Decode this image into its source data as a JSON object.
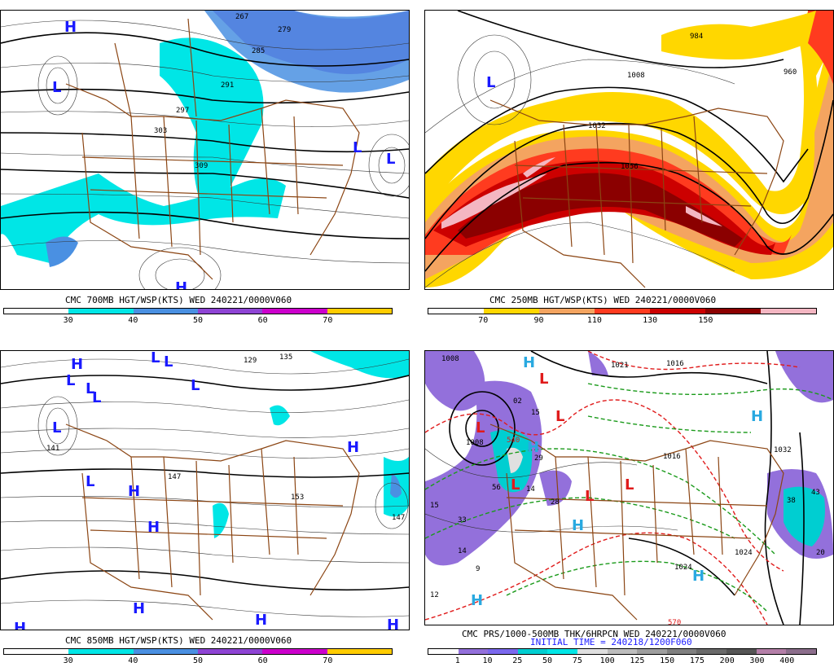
{
  "panels": [
    {
      "id": "p700",
      "title": "CMC 700MB HGT/WSP(KTS) WED 240221/0000V060",
      "colorbar": {
        "ticks": [
          "30",
          "40",
          "50",
          "60",
          "70"
        ],
        "colors": [
          "#ffffff",
          "#00e6e6",
          "#4a90e2",
          "#8e44d4",
          "#cc00cc",
          "#ffcc00"
        ]
      },
      "contour_labels": [
        "297",
        "303",
        "309",
        "279",
        "285",
        "291",
        "267"
      ],
      "pressure_centers": [
        {
          "type": "H"
        },
        {
          "type": "L"
        },
        {
          "type": "L"
        },
        {
          "type": "L"
        },
        {
          "type": "H"
        }
      ]
    },
    {
      "id": "p250",
      "title": "CMC 250MB HGT/WSP(KTS) WED 240221/0000V060",
      "colorbar": {
        "ticks": [
          "70",
          "90",
          "110",
          "130",
          "150"
        ],
        "colors": [
          "#ffffff",
          "#ffd700",
          "#f4a460",
          "#ff3b1f",
          "#cc0000",
          "#8b0000",
          "#f4b6c2"
        ]
      },
      "contour_labels": [
        "1032",
        "1008",
        "984",
        "1056",
        "960"
      ],
      "pressure_centers": [
        {
          "type": "L"
        }
      ]
    },
    {
      "id": "p850",
      "title": "CMC 850MB HGT/WSP(KTS) WED 240221/0000V060",
      "colorbar": {
        "ticks": [
          "30",
          "40",
          "50",
          "60",
          "70"
        ],
        "colors": [
          "#ffffff",
          "#00e6e6",
          "#4a90e2",
          "#8e44d4",
          "#cc00cc",
          "#ffcc00"
        ]
      },
      "contour_labels": [
        "147",
        "141",
        "129",
        "135",
        "153",
        "147"
      ],
      "pressure_centers": [
        {
          "type": "H"
        },
        {
          "type": "L"
        },
        {
          "type": "L"
        },
        {
          "type": "L"
        },
        {
          "type": "L"
        },
        {
          "type": "L"
        },
        {
          "type": "L"
        },
        {
          "type": "L"
        },
        {
          "type": "L"
        },
        {
          "type": "H"
        },
        {
          "type": "H"
        },
        {
          "type": "H"
        },
        {
          "type": "H"
        },
        {
          "type": "H"
        },
        {
          "type": "H"
        },
        {
          "type": "H"
        }
      ]
    },
    {
      "id": "pprs",
      "title": "CMC PRS/1000-500MB THK/6HRPCN WED 240221/0000V060",
      "subtitle": "INITIAL TIME = 240218/1200F060",
      "colorbar": {
        "ticks": [
          "1",
          "10",
          "25",
          "50",
          "75",
          "100",
          "125",
          "150",
          "175",
          "200",
          "300",
          "400"
        ],
        "colors": [
          "#ffffff",
          "#9370db",
          "#7b68ee",
          "#00ced1",
          "#00e6e6",
          "#e0e0e0",
          "#bdbdbd",
          "#9e9e9e",
          "#808080",
          "#6a6a6a",
          "#555555",
          "#b47fa8",
          "#8c6e8c"
        ]
      },
      "contour_labels": [
        "1008",
        "1016",
        "1016",
        "1032",
        "1024",
        "1024",
        "1021",
        "570",
        "540",
        "1008"
      ],
      "pressure_centers": [
        {
          "type": "H"
        },
        {
          "type": "L"
        },
        {
          "type": "L"
        },
        {
          "type": "L"
        },
        {
          "type": "L"
        },
        {
          "type": "L"
        },
        {
          "type": "L"
        },
        {
          "type": "H"
        },
        {
          "type": "H"
        },
        {
          "type": "H"
        },
        {
          "type": "H"
        },
        {
          "type": "H"
        }
      ],
      "precip_values": [
        "02",
        "15",
        "29",
        "14",
        "56",
        "28",
        "33",
        "9",
        "14",
        "12",
        "15",
        "43",
        "38",
        "20"
      ]
    }
  ]
}
